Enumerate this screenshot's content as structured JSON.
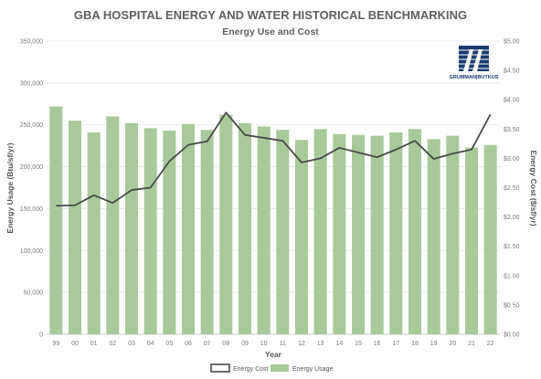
{
  "chart_data": {
    "type": "bar+line",
    "title": "GBA HOSPITAL ENERGY AND WATER HISTORICAL BENCHMARKING",
    "subtitle": "Energy Use and Cost",
    "xlabel": "Year",
    "ylabel_left": "Energy Usage (Btu/sf/yr)",
    "ylabel_right": "Energy Cost ($/sf/yr)",
    "categories": [
      "99",
      "00",
      "01",
      "02",
      "03",
      "04",
      "05",
      "06",
      "07",
      "08",
      "09",
      "10",
      "11",
      "12",
      "13",
      "14",
      "15",
      "16",
      "17",
      "18",
      "19",
      "20",
      "21",
      "22"
    ],
    "y_left_ticks": [
      "0",
      "50,000",
      "100,000",
      "150,000",
      "200,000",
      "250,000",
      "300,000",
      "350,000"
    ],
    "y_right_ticks": [
      "$0.00",
      "$0.50",
      "$1.00",
      "$1.50",
      "$2.00",
      "$2.50",
      "$3.00",
      "$3.50",
      "$4.00",
      "$4.50",
      "$5.00"
    ],
    "ylim_left": [
      0,
      350000
    ],
    "ylim_right": [
      0,
      5.0
    ],
    "grid": true,
    "legend_position": "bottom",
    "series": [
      {
        "name": "Energy Usage",
        "axis": "left",
        "kind": "bar",
        "color": "#a9c99a",
        "values": [
          272000,
          255000,
          241000,
          260000,
          252000,
          246000,
          243000,
          251000,
          244000,
          262000,
          252000,
          248000,
          244000,
          232000,
          245000,
          239000,
          238000,
          237000,
          241000,
          245000,
          233000,
          237000,
          223000,
          226000
        ]
      },
      {
        "name": "Energy Cost",
        "axis": "right",
        "kind": "line",
        "color": "#4a4a4a",
        "values": [
          2.19,
          2.2,
          2.37,
          2.24,
          2.46,
          2.5,
          2.95,
          3.23,
          3.29,
          3.78,
          3.4,
          3.35,
          3.3,
          2.93,
          3.0,
          3.18,
          3.1,
          3.02,
          3.15,
          3.3,
          2.99,
          3.08,
          3.15,
          3.75
        ]
      }
    ]
  },
  "logo": {
    "text": "GRUMMAN|BUTKUS",
    "color": "#1b3b6f"
  }
}
